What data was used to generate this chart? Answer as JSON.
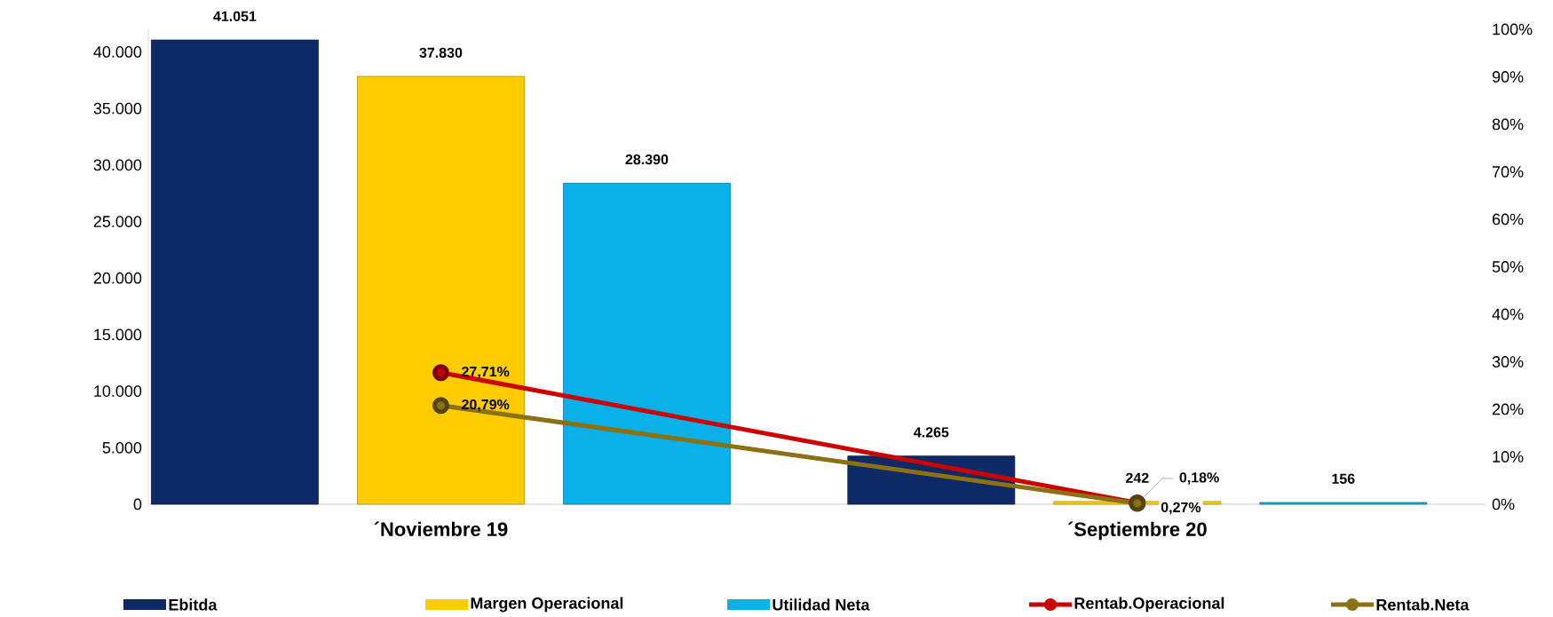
{
  "chart_data": {
    "type": "bar",
    "categories": [
      "´Noviembre 19",
      "´Septiembre 20"
    ],
    "series": [
      {
        "name": "Ebitda",
        "color": "#0d2a66",
        "values": [
          41051,
          4265
        ],
        "value_labels": [
          "41.051",
          "4.265"
        ]
      },
      {
        "name": "Margen Operacional",
        "color": "#ffcc00",
        "values": [
          37830,
          242
        ],
        "value_labels": [
          "37.830",
          "242"
        ]
      },
      {
        "name": "Utilidad Neta",
        "color": "#0ab0e8",
        "values": [
          28390,
          156
        ],
        "value_labels": [
          "28.390",
          "156"
        ]
      },
      {
        "name": "Rentab.Operacional",
        "type": "line",
        "axis": "y2",
        "color": "#cc0000",
        "values": [
          27.71,
          0.27
        ],
        "value_labels": [
          "27,71%",
          "0,27%"
        ]
      },
      {
        "name": "Rentab.Neta",
        "type": "line",
        "axis": "y2",
        "color": "#8c7014",
        "values": [
          20.79,
          0.18
        ],
        "value_labels": [
          "20,79%",
          "0,18%"
        ]
      }
    ],
    "ylim": [
      0,
      42000
    ],
    "yticks": [
      0,
      {
        "value": 5000,
        "label": "5.000"
      },
      {
        "value": 10000,
        "label": "10.000"
      },
      {
        "value": 15000,
        "label": "15.000"
      },
      {
        "value": 20000,
        "label": "20.000"
      },
      {
        "value": 25000,
        "label": "25.000"
      },
      {
        "value": 30000,
        "label": "30.000"
      },
      {
        "value": 35000,
        "label": "35.000"
      },
      {
        "value": 40000,
        "label": "40.000"
      }
    ],
    "y2lim": [
      0,
      100
    ],
    "y2ticks": [
      {
        "value": 0,
        "label": "0%"
      },
      {
        "value": 10,
        "label": "10%"
      },
      {
        "value": 20,
        "label": "20%"
      },
      {
        "value": 30,
        "label": "30%"
      },
      {
        "value": 40,
        "label": "40%"
      },
      {
        "value": 50,
        "label": "50%"
      },
      {
        "value": 60,
        "label": "60%"
      },
      {
        "value": 70,
        "label": "70%"
      },
      {
        "value": 80,
        "label": "80%"
      },
      {
        "value": 90,
        "label": "90%"
      },
      {
        "value": 100,
        "label": "100%"
      }
    ],
    "legend": "bottom",
    "marker": "circle",
    "line_style": "solid",
    "grid": false
  }
}
